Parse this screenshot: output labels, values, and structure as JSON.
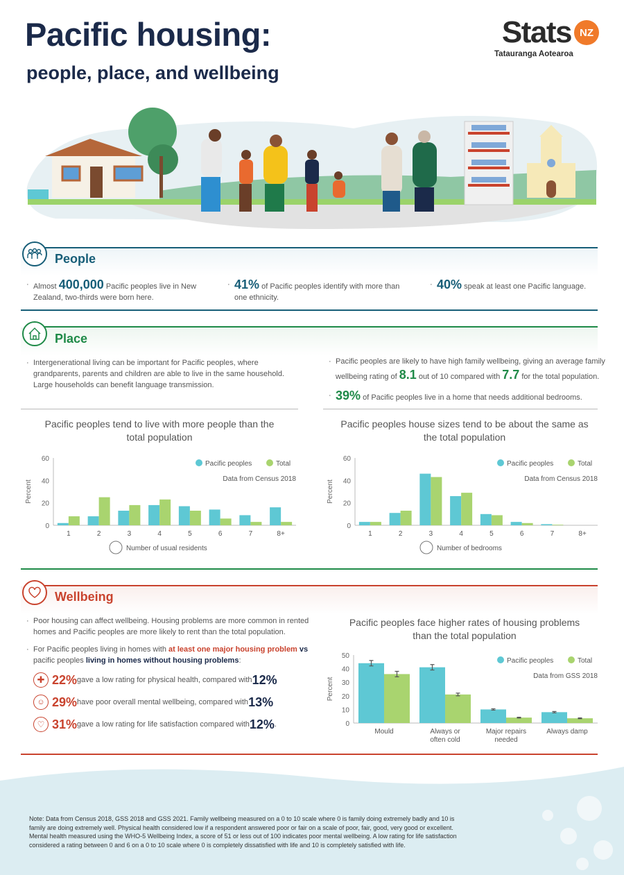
{
  "header": {
    "title": "Pacific housing:",
    "subtitle": "people, place, and wellbeing"
  },
  "logo": {
    "word": "Stats",
    "badge": "NZ",
    "tagline": "Tatauranga Aotearoa",
    "badge_color": "#f07a2a"
  },
  "colors": {
    "people": "#175e78",
    "place": "#1f8a48",
    "wellbeing": "#c9432e",
    "navy": "#1b2a4a",
    "pacific": "#5ec8d4",
    "total": "#a9d46f"
  },
  "people": {
    "title": "People",
    "icon": "people-group-icon",
    "items": [
      {
        "pre": "Almost ",
        "stat": "400,000",
        "post": " Pacific peoples live in New Zealand, two-thirds were born here."
      },
      {
        "pre": "",
        "stat": "41%",
        "post": " of Pacific peoples identify with more than one ethnicity."
      },
      {
        "pre": "",
        "stat": "40%",
        "post": " speak at least one Pacific language."
      }
    ]
  },
  "place": {
    "title": "Place",
    "icon": "house-icon",
    "left": "Intergenerational living can be important for Pacific peoples, where grandparents, parents and children are able to live in the same household. Large households can benefit language transmission.",
    "right1": {
      "a": "Pacific peoples are likely to have high family wellbeing, giving an average family wellbeing rating of ",
      "s1": "8.1",
      "b": " out of 10 compared with ",
      "s2": "7.7",
      "c": " for the total population."
    },
    "right2": {
      "stat": "39%",
      "post": " of Pacific peoples live in a home that needs additional bedrooms."
    }
  },
  "wellbeing": {
    "title": "Wellbeing",
    "icon": "heart-icon",
    "p1": "Poor housing can affect wellbeing. Housing problems are more common in rented homes and Pacific peoples are more likely to rent than the total population.",
    "p2": {
      "a": "For Pacific peoples living in homes with ",
      "b": "at least one major housing problem",
      "c": " vs",
      "d": "pacific peoples ",
      "e": "living in homes without housing problems",
      ":": ":"
    },
    "stats": [
      {
        "icon": "physical-health-icon",
        "s1": "22%",
        "t": " gave a low rating for physical health, compared with ",
        "s2": "12%",
        "end": ""
      },
      {
        "icon": "mental-health-icon",
        "s1": "29%",
        "t": " have poor overall mental wellbeing, compared with ",
        "s2": "13%",
        "end": ""
      },
      {
        "icon": "heart-check-icon",
        "s1": "31%",
        "t": " gave a low rating for life satisfaction compared with ",
        "s2": "12%",
        "end": "."
      }
    ]
  },
  "note": "Note: Data from Census 2018, GSS 2018 and GSS 2021. Family wellbeing measured on a 0 to 10 scale where 0 is family doing extremely badly and 10 is family are doing extremely well. Physical health considered low if a respondent answered poor or fair on a scale of poor, fair, good, very good or excellent. Mental health measured using the WHO-5 Wellbeing Index, a score of 51 or less out of 100 indicates poor mental wellbeing. A low rating for life satisfaction considered a rating between 0 and 6 on a 0 to 10 scale where 0 is completely dissatisfied with life and 10 is completely satisfied with life.",
  "chart_data": [
    {
      "type": "bar",
      "title": "Pacific peoples tend to live with more people than the total population",
      "xlabel": "Number of usual residents",
      "xlabel_icon": "people-group-icon",
      "ylabel": "Percent",
      "ylim": [
        0,
        60
      ],
      "yticks": [
        0,
        20,
        40,
        60
      ],
      "source": "Data from Census 2018",
      "legend": "top-right",
      "grid": false,
      "categories": [
        "1",
        "2",
        "3",
        "4",
        "5",
        "6",
        "7",
        "8+"
      ],
      "series": [
        {
          "name": "Pacific peoples",
          "values": [
            2,
            8,
            13,
            18,
            17,
            14,
            9,
            16
          ]
        },
        {
          "name": "Total",
          "values": [
            8,
            25,
            18,
            23,
            13,
            6,
            3,
            3
          ]
        }
      ]
    },
    {
      "type": "bar",
      "title": "Pacific peoples house sizes tend to be about the same as the total population",
      "xlabel": "Number of bedrooms",
      "xlabel_icon": "bed-icon",
      "ylabel": "Percent",
      "ylim": [
        0,
        60
      ],
      "yticks": [
        0,
        20,
        40,
        60
      ],
      "source": "Data from Census 2018",
      "legend": "top-right",
      "grid": false,
      "categories": [
        "1",
        "2",
        "3",
        "4",
        "5",
        "6",
        "7",
        "8+"
      ],
      "series": [
        {
          "name": "Pacific peoples",
          "values": [
            3,
            11,
            46,
            26,
            10,
            3,
            1,
            0
          ]
        },
        {
          "name": "Total",
          "values": [
            3,
            13,
            43,
            29,
            9,
            2,
            0.5,
            0
          ]
        }
      ]
    },
    {
      "type": "bar",
      "title": "Pacific peoples face higher rates of housing problems than the total population",
      "xlabel": "",
      "ylabel": "Percent",
      "ylim": [
        0,
        50
      ],
      "yticks": [
        0,
        10,
        20,
        30,
        40,
        50
      ],
      "source": "Data from GSS 2018",
      "legend": "top-right",
      "grid": false,
      "categories": [
        "Mould",
        "Always or often cold",
        "Major repairs needed",
        "Always damp"
      ],
      "category_lines": [
        [
          "Mould"
        ],
        [
          "Always or",
          "often cold"
        ],
        [
          "Major repairs",
          "needed"
        ],
        [
          "Always damp"
        ]
      ],
      "series": [
        {
          "name": "Pacific peoples",
          "values": [
            44,
            41,
            10,
            8
          ],
          "error": [
            2,
            2,
            0.5,
            0.5
          ]
        },
        {
          "name": "Total",
          "values": [
            36,
            21,
            4,
            3.5
          ],
          "error": [
            2,
            1,
            0.3,
            0.3
          ]
        }
      ]
    }
  ]
}
